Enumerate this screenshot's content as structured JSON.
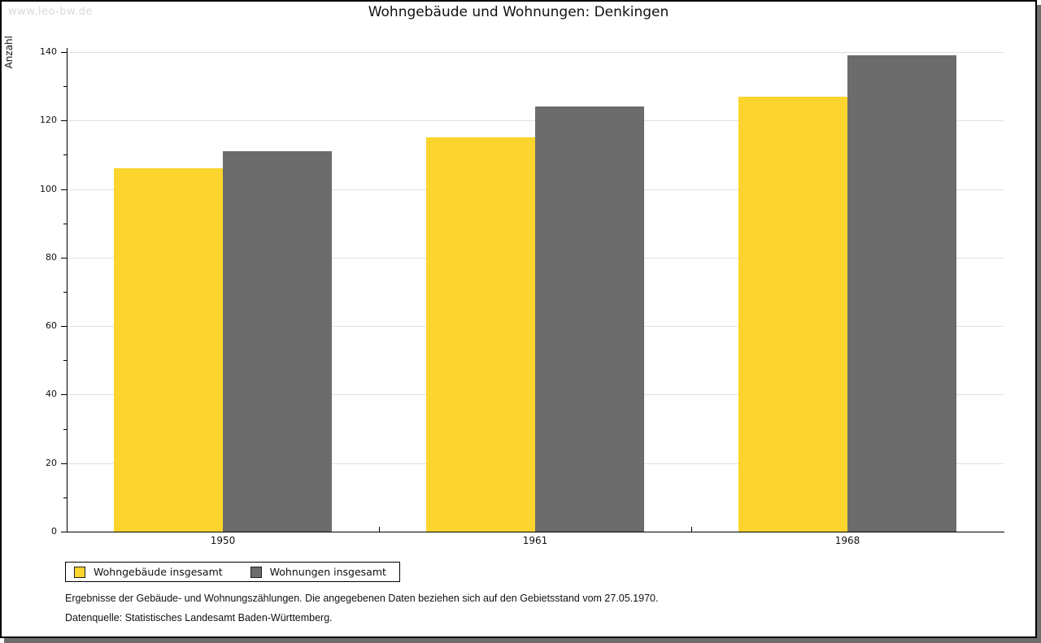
{
  "watermark": "www.leo-bw.de",
  "colors": {
    "series_yellow": "#FBD42D",
    "series_gray": "#6C6C6C",
    "gridline": "#e0e0e0",
    "watermark": "#d9d9d9",
    "page_border": "#000000",
    "page_shadow": "#6e6e6e"
  },
  "chart_data": {
    "type": "bar",
    "title": "Wohngebäude und Wohnungen: Denkingen",
    "ylabel": "Anzahl",
    "xlabel": "",
    "categories": [
      "1950",
      "1961",
      "1968"
    ],
    "series": [
      {
        "name": "Wohngebäude insgesamt",
        "color": "#FBD42D",
        "values": [
          106,
          115,
          127
        ]
      },
      {
        "name": "Wohnungen insgesamt",
        "color": "#6C6C6C",
        "values": [
          111,
          124,
          139
        ]
      }
    ],
    "ylim": [
      0,
      140
    ],
    "yticks": [
      0,
      20,
      40,
      60,
      80,
      100,
      120,
      140
    ],
    "yminor_step": 10,
    "grid": "horizontal-major-only",
    "legend_position": "bottom-left"
  },
  "legend": {
    "items": [
      {
        "label": "Wohngebäude insgesamt"
      },
      {
        "label": "Wohnungen insgesamt"
      }
    ]
  },
  "footnotes": [
    "Ergebnisse der Gebäude- und Wohnungszählungen. Die angegebenen Daten beziehen sich auf den Gebietsstand vom 27.05.1970.",
    "Datenquelle: Statistisches Landesamt Baden-Württemberg."
  ]
}
